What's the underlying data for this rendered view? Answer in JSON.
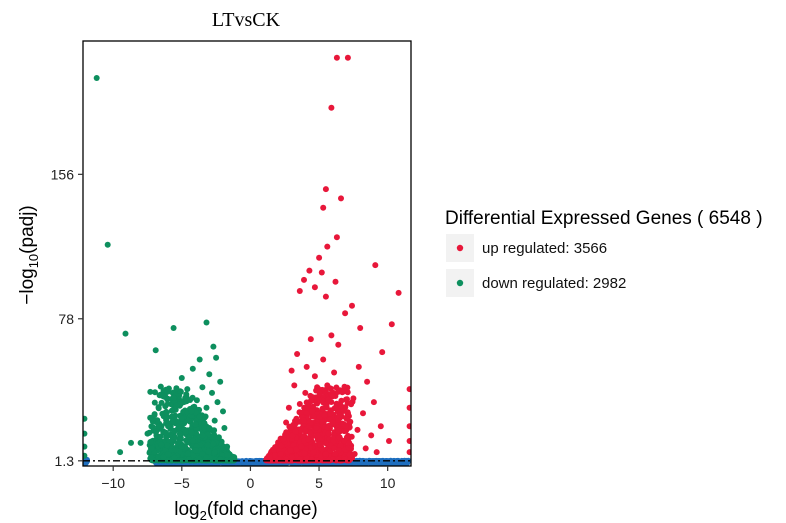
{
  "chart_data": {
    "type": "scatter",
    "title": "LTvsCK",
    "xlabel": {
      "base": "log",
      "sub": "2",
      "rest": "(fold change)"
    },
    "ylabel": {
      "prefix": "−log",
      "sub": "10",
      "rest": "(padj)"
    },
    "xlim": [
      -12.2,
      11.7
    ],
    "ylim": [
      -1.5,
      228
    ],
    "x_ticks": [
      -10,
      -5,
      0,
      5,
      10
    ],
    "y_ticks": [
      1.3,
      78,
      156
    ],
    "threshold_y": 1.3,
    "grid": false,
    "legend_position": "right",
    "legend": {
      "title": "Differential Expressed Genes ( 6548 )",
      "items": [
        {
          "label": "up regulated: 3566",
          "color": "#e8173a"
        },
        {
          "label": "down regulated: 2982",
          "color": "#0d8f5e"
        }
      ]
    },
    "colors": {
      "up": "#e8173a",
      "down": "#0d8f5e",
      "ns": "#1f6fbf"
    },
    "series": [
      {
        "key": "up",
        "points": [
          [
            6.3,
            219
          ],
          [
            7.1,
            219
          ],
          [
            5.9,
            192
          ],
          [
            5.5,
            148
          ],
          [
            6.6,
            143
          ],
          [
            5.3,
            138
          ],
          [
            6.3,
            122
          ],
          [
            9.1,
            107
          ],
          [
            10.8,
            92
          ],
          [
            5.6,
            117
          ],
          [
            5.0,
            111
          ],
          [
            4.3,
            104
          ],
          [
            5.2,
            103
          ],
          [
            3.9,
            99
          ],
          [
            6.2,
            98
          ],
          [
            4.7,
            95
          ],
          [
            3.6,
            93
          ],
          [
            5.5,
            90
          ],
          [
            7.4,
            85
          ],
          [
            6.9,
            81
          ],
          [
            10.3,
            75
          ],
          [
            8.0,
            73
          ],
          [
            5.9,
            69
          ],
          [
            4.4,
            67
          ],
          [
            6.4,
            64
          ],
          [
            9.6,
            60
          ],
          [
            3.4,
            59
          ],
          [
            5.3,
            56
          ],
          [
            7.9,
            52
          ],
          [
            4.1,
            52
          ],
          [
            3.0,
            50
          ],
          [
            6.1,
            49
          ],
          [
            4.7,
            47
          ],
          [
            8.5,
            44
          ],
          [
            5.6,
            42
          ],
          [
            3.2,
            42
          ],
          [
            6.8,
            39
          ],
          [
            4.0,
            38
          ],
          [
            7.5,
            35
          ],
          [
            5.0,
            34
          ],
          [
            9.0,
            33
          ],
          [
            3.6,
            32
          ],
          [
            6.2,
            30
          ],
          [
            2.8,
            30
          ],
          [
            4.5,
            28
          ],
          [
            8.2,
            27
          ],
          [
            5.4,
            26
          ],
          [
            7.0,
            24
          ],
          [
            3.9,
            23
          ],
          [
            6.0,
            22
          ],
          [
            2.6,
            22
          ],
          [
            9.5,
            20
          ],
          [
            4.8,
            19
          ],
          [
            7.8,
            18
          ],
          [
            3.3,
            17
          ],
          [
            5.7,
            16
          ],
          [
            8.8,
            15
          ],
          [
            6.5,
            14
          ],
          [
            4.2,
            13
          ],
          [
            2.4,
            13
          ],
          [
            10.1,
            12
          ],
          [
            7.2,
            11
          ],
          [
            5.1,
            10
          ],
          [
            3.7,
            9
          ],
          [
            8.4,
            8
          ],
          [
            6.1,
            8
          ],
          [
            2.9,
            7
          ],
          [
            9.2,
            6
          ],
          [
            4.6,
            6
          ],
          [
            7.6,
            5
          ],
          [
            5.5,
            5
          ],
          [
            2.2,
            5
          ],
          [
            11.6,
            40
          ],
          [
            11.6,
            30
          ],
          [
            11.6,
            20
          ],
          [
            11.6,
            12
          ],
          [
            11.6,
            6
          ]
        ]
      },
      {
        "key": "down",
        "points": [
          [
            -11.2,
            208
          ],
          [
            -10.4,
            118
          ],
          [
            -9.1,
            70
          ],
          [
            -5.6,
            73
          ],
          [
            -3.2,
            76
          ],
          [
            -6.9,
            61
          ],
          [
            -2.7,
            63
          ],
          [
            -3.7,
            56
          ],
          [
            -2.5,
            57
          ],
          [
            -4.2,
            51
          ],
          [
            -3.0,
            48
          ],
          [
            -5.0,
            46
          ],
          [
            -2.2,
            44
          ],
          [
            -3.5,
            41
          ],
          [
            -4.6,
            40
          ],
          [
            -2.8,
            38
          ],
          [
            -6.3,
            36
          ],
          [
            -3.9,
            34
          ],
          [
            -2.4,
            33
          ],
          [
            -5.4,
            31
          ],
          [
            -3.2,
            30
          ],
          [
            -4.3,
            28
          ],
          [
            -2.0,
            28
          ],
          [
            -7.0,
            26
          ],
          [
            -3.7,
            25
          ],
          [
            -5.0,
            24
          ],
          [
            -2.6,
            23
          ],
          [
            -4.0,
            21
          ],
          [
            -6.0,
            20
          ],
          [
            -3.0,
            19
          ],
          [
            -1.9,
            19
          ],
          [
            -4.7,
            17
          ],
          [
            -7.5,
            16
          ],
          [
            -3.5,
            15
          ],
          [
            -5.5,
            14
          ],
          [
            -2.3,
            14
          ],
          [
            -4.2,
            12
          ],
          [
            -8.0,
            11
          ],
          [
            -6.5,
            10
          ],
          [
            -3.1,
            10
          ],
          [
            -5.0,
            9
          ],
          [
            -1.7,
            9
          ],
          [
            -7.2,
            8
          ],
          [
            -4.0,
            7
          ],
          [
            -2.6,
            6
          ],
          [
            -8.7,
            11
          ],
          [
            -9.5,
            6
          ],
          [
            -6.0,
            5
          ],
          [
            -3.5,
            5
          ],
          [
            -12.1,
            24
          ],
          [
            -12.1,
            16
          ],
          [
            -12.1,
            9
          ],
          [
            -12.1,
            4
          ]
        ]
      }
    ]
  }
}
